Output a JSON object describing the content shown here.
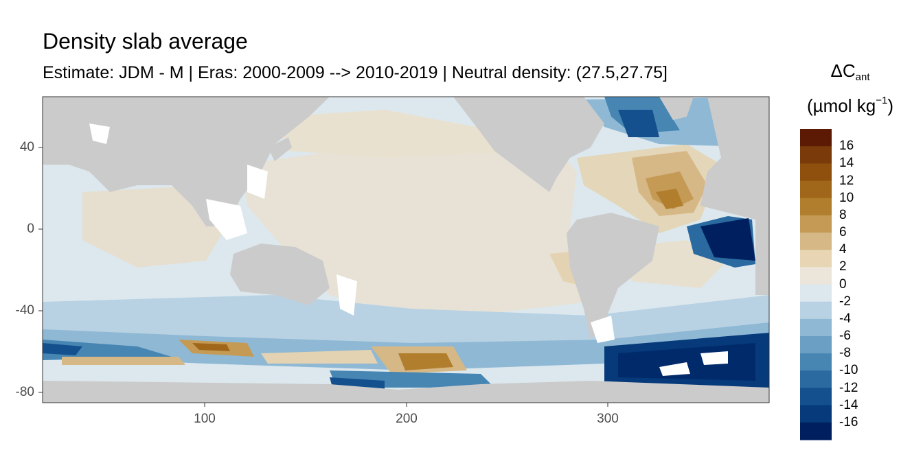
{
  "title": "Density slab average",
  "subtitle": "Estimate: JDM - M | Eras: 2000-2009 --> 2010-2019 | Neutral density: (27.5,27.75]",
  "legend": {
    "title_symbol": "ΔC",
    "title_subscript": "ant",
    "unit_prefix": "(µmol kg",
    "unit_superscript": "−1",
    "unit_suffix": ")",
    "labels": [
      "16",
      "14",
      "12",
      "10",
      "8",
      "6",
      "4",
      "2",
      "0",
      "-2",
      "-4",
      "-6",
      "-8",
      "-10",
      "-12",
      "-14",
      "-16"
    ],
    "colors": [
      "#5c1a05",
      "#7a3a0a",
      "#8e500c",
      "#a0661a",
      "#b17e2e",
      "#c49a55",
      "#d6b786",
      "#e7d5b3",
      "#ece6da",
      "#dde7ee",
      "#b8d2e4",
      "#8fb8d4",
      "#6ba0c4",
      "#4786b3",
      "#2a6aa0",
      "#13508d",
      "#063a7a",
      "#001f5f"
    ]
  },
  "axes": {
    "y_ticks": [
      "40",
      "0",
      "-40",
      "-80"
    ],
    "x_ticks": [
      "100",
      "200",
      "300"
    ]
  },
  "colors": {
    "land": "#cbcbcb",
    "ocean_neutral": "#e8e2d6",
    "ocean_light_blue": "#dce8ee",
    "positive": "#c49a55",
    "negative_strong": "#012a6b"
  }
}
